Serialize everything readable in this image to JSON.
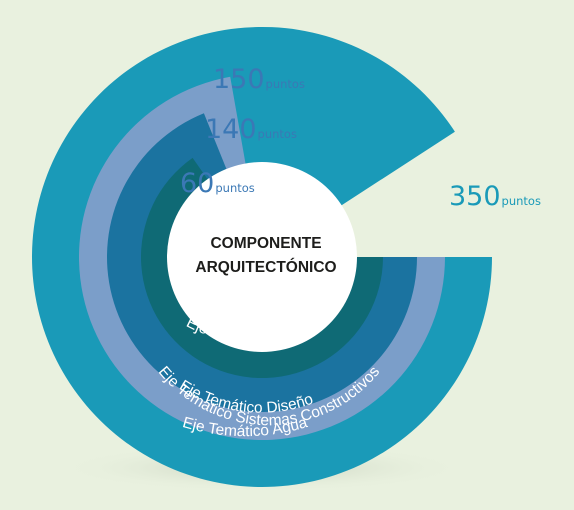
{
  "diagram": {
    "center": [
      "COMPONENTE",
      "ARQUITECTÓNICO"
    ],
    "rings": [
      {
        "id": "agua",
        "label": "Eje Temático Agua",
        "points": "350",
        "unit": "puntos",
        "color": "#1a9ab8"
      },
      {
        "id": "diseno",
        "label": "Eje Temático Diseño",
        "points": "150",
        "unit": "puntos",
        "color": "#7b9ec9"
      },
      {
        "id": "sistemas",
        "label": "Eje Temático Sistemas Constructivos",
        "points": "140",
        "unit": "puntos",
        "color": "#1b73a0"
      },
      {
        "id": "energia",
        "label": "Eje Temático Energía",
        "points": "60",
        "unit": "puntos",
        "color": "#0f6a75"
      }
    ],
    "colors": {
      "background": "#e9f1df",
      "points_text": "#3b78b5",
      "points_350_text": "#1a9ab8"
    }
  }
}
